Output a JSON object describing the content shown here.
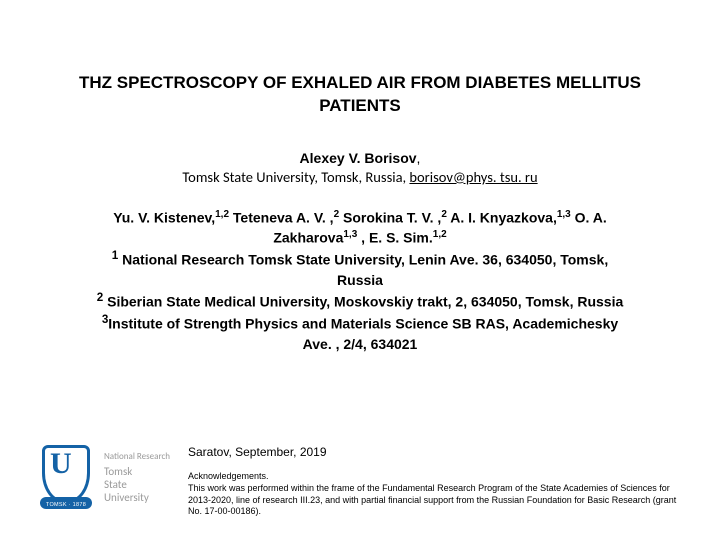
{
  "title_line1": "THZ SPECTROSCOPY OF EXHALED AIR FROM DIABETES MELLITUS",
  "title_line2": "PATIENTS",
  "presenter_name": "Alexey V. Borisov",
  "presenter_comma": ",",
  "presenter_affil": "Tomsk State University, Tomsk, Russia, ",
  "presenter_email": "borisov@phys. tsu. ru",
  "authors_html_parts": {
    "a1": "Yu. V. Kistenev,",
    "s1": "1,2",
    "a2": " Teteneva A. V. ,",
    "s2": "2",
    "a3": " Sorokina T. V. ,",
    "s3": "2",
    "a4": " A. I. Knyazkova,",
    "s4": "1,3",
    "a5": " O. A.",
    "a6": "Zakharova",
    "s6": "1,3",
    "a7": ", E. S. Sim.",
    "s7": "1,2"
  },
  "aff": {
    "n1": "1",
    "t1": " National Research Tomsk State University, Lenin Ave. 36, 634050, Tomsk,",
    "t1b": "Russia",
    "n2": "2",
    "t2": " Siberian State Medical University, Moskovskiy trakt, 2, 634050, Tomsk, Russia",
    "n3": "3",
    "t3": "Institute of Strength Physics and Materials Science SB RAS, Academichesky",
    "t3b": "Ave. , 2/4, 634021"
  },
  "logo": {
    "u": "U",
    "ribbon": "TOMSK · 1878",
    "text_line1": "National Research",
    "text_line2": "Tomsk",
    "text_line3": "State",
    "text_line4": "University"
  },
  "venue": "Saratov, September, 2019",
  "ack_header": "Acknowledgements.",
  "ack_body": "This work was performed within the frame of the Fundamental Research Program of the State Academies of Sciences for 2013-2020, line of research III.23, and with partial financial support from the Russian Foundation for Basic Research (grant No. 17-00-00186)."
}
